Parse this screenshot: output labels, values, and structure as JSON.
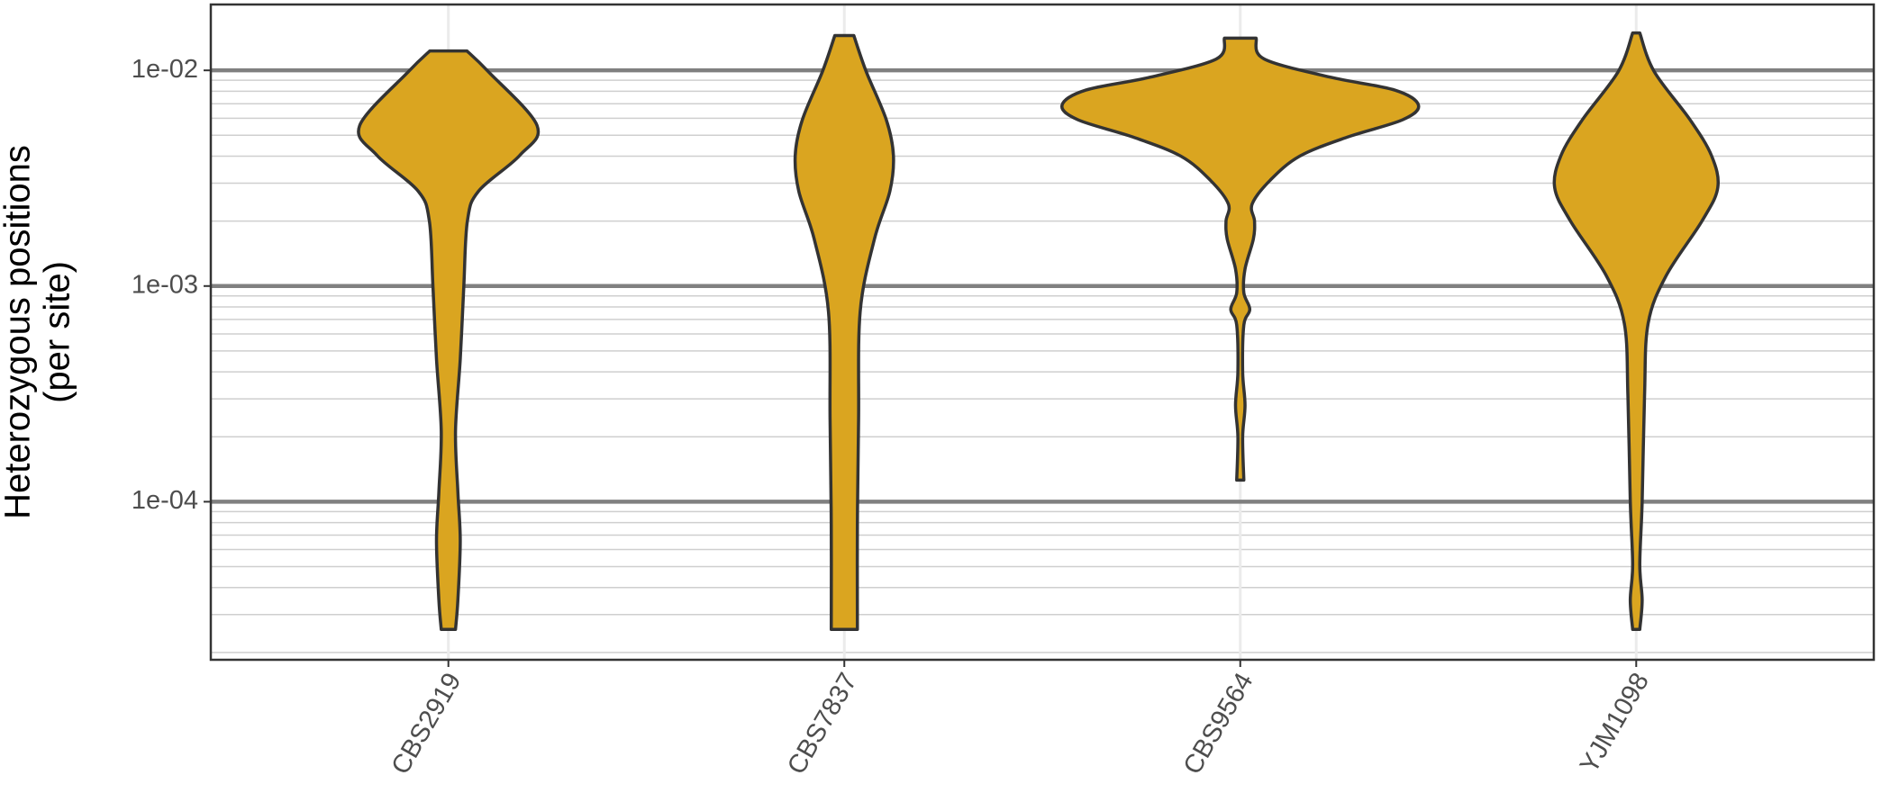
{
  "chart_data": {
    "type": "violin",
    "y_label": [
      "Heterozygous positions",
      "(per site)"
    ],
    "categories": [
      "CBS2919",
      "CBS7837",
      "CBS9564",
      "YJM1098"
    ],
    "color": "#DAA520",
    "log_y": true,
    "grid": true,
    "ylim": [
      1.85e-05,
      0.0202
    ],
    "yticks": [
      {
        "value": 0.01,
        "label": "1e-02"
      },
      {
        "value": 0.001,
        "label": "1e-03"
      },
      {
        "value": 0.0001,
        "label": "1e-04"
      }
    ],
    "minor_yticks": [
      2e-05,
      3e-05,
      4e-05,
      5e-05,
      6e-05,
      7e-05,
      8e-05,
      9e-05,
      0.0002,
      0.0003,
      0.0004,
      0.0005,
      0.0006,
      0.0007,
      0.0008,
      0.0009,
      0.002,
      0.003,
      0.004,
      0.005,
      0.006,
      0.007,
      0.008,
      0.009
    ],
    "violins": [
      {
        "y": [
          0.0123,
          0.0099,
          0.00555,
          0.00403,
          0.00275,
          0.002,
          0.001,
          0.000458,
          0.000213,
          0.000111,
          6.6e-05,
          3.5e-05,
          2.56e-05
        ],
        "width": [
          0.047,
          0.1,
          0.224,
          0.18,
          0.076,
          0.048,
          0.039,
          0.03,
          0.018,
          0.024,
          0.03,
          0.024,
          0.018
        ]
      },
      {
        "y": [
          0.0145,
          0.0099,
          0.0059,
          0.00403,
          0.00275,
          0.00165,
          0.00076,
          0.00024,
          7.8e-05,
          2.56e-05
        ],
        "width": [
          0.024,
          0.055,
          0.106,
          0.124,
          0.115,
          0.076,
          0.04,
          0.036,
          0.033,
          0.033
        ]
      },
      {
        "y": [
          0.0141,
          0.0113,
          0.0093,
          0.0081,
          0.0069,
          0.0059,
          0.0049,
          0.004,
          0.0031,
          0.0024,
          0.002,
          0.00165,
          0.0012,
          0.00093,
          0.00078,
          0.00066,
          0.0004,
          0.00028,
          0.0002,
          0.000126
        ],
        "width": [
          0.04,
          0.06,
          0.227,
          0.39,
          0.45,
          0.41,
          0.27,
          0.15,
          0.076,
          0.03,
          0.036,
          0.033,
          0.012,
          0.009,
          0.024,
          0.009,
          0.006,
          0.012,
          0.006,
          0.009
        ]
      },
      {
        "y": [
          0.0149,
          0.0099,
          0.0059,
          0.00403,
          0.00286,
          0.002,
          0.00112,
          0.00067,
          0.00031,
          0.0001,
          5.1e-05,
          3.5e-05,
          2.56e-05
        ],
        "width": [
          0.009,
          0.045,
          0.136,
          0.19,
          0.206,
          0.166,
          0.076,
          0.03,
          0.021,
          0.015,
          0.009,
          0.015,
          0.009
        ]
      }
    ]
  }
}
